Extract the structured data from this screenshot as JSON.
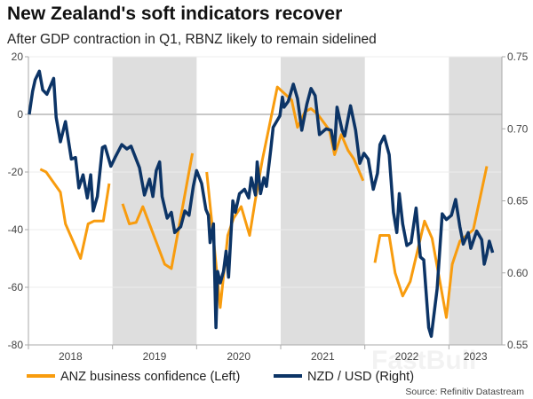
{
  "header": {
    "title": "New Zealand's soft indicators recover",
    "subtitle": "After GDP contraction in Q1, RBNZ likely to remain sidelined"
  },
  "watermark": "FastBull",
  "source": "Source: Refinitiv Datastream",
  "chart_data": {
    "type": "line",
    "title": "New Zealand's soft indicators recover",
    "subtitle": "After GDP contraction in Q1, RBNZ likely to remain sidelined",
    "xlim": [
      2018,
      2023.63
    ],
    "x_ticks": [
      "2018",
      "2019",
      "2020",
      "2021",
      "2022",
      "2023"
    ],
    "y_left": {
      "lim": [
        -80,
        20
      ],
      "ticks": [
        "20",
        "0",
        "-20",
        "-40",
        "-60",
        "-80"
      ]
    },
    "y_right": {
      "lim": [
        0.55,
        0.75
      ],
      "ticks": [
        "0.75",
        "0.70",
        "0.65",
        "0.60",
        "0.55"
      ]
    },
    "grid": true,
    "shaded_years": [
      [
        2019,
        2020
      ],
      [
        2021,
        2022
      ],
      [
        2023,
        2023.63
      ]
    ],
    "shade_color": "#dedede",
    "legend_position": "bottom",
    "series": [
      {
        "name": "ANZ business confidence (Left)",
        "axis": "left",
        "color": "#f89c0e",
        "segments": [
          [
            [
              2018.14,
              -19
            ],
            [
              2018.21,
              -20
            ],
            [
              2018.38,
              -27
            ],
            [
              2018.44,
              -38
            ],
            [
              2018.62,
              -50
            ],
            [
              2018.71,
              -38
            ],
            [
              2018.78,
              -37
            ],
            [
              2018.89,
              -37
            ],
            [
              2018.96,
              -24
            ]
          ],
          [
            [
              2019.12,
              -31
            ],
            [
              2019.2,
              -38
            ],
            [
              2019.28,
              -37.5
            ],
            [
              2019.36,
              -32
            ],
            [
              2019.62,
              -52
            ],
            [
              2019.7,
              -53.5
            ],
            [
              2019.95,
              -13.5
            ]
          ],
          [
            [
              2020.12,
              -20
            ],
            [
              2020.2,
              -43
            ],
            [
              2020.28,
              -67
            ],
            [
              2020.37,
              -42
            ],
            [
              2020.44,
              -36
            ],
            [
              2020.53,
              -32
            ],
            [
              2020.63,
              -42
            ],
            [
              2020.69,
              -31
            ],
            [
              2020.78,
              -16
            ],
            [
              2020.96,
              9.5
            ],
            [
              2021.13,
              5
            ],
            [
              2021.2,
              -4.5
            ],
            [
              2021.29,
              1
            ],
            [
              2021.36,
              2
            ],
            [
              2021.44,
              0
            ],
            [
              2021.58,
              -5.5
            ],
            [
              2021.64,
              -14
            ],
            [
              2021.72,
              -7
            ],
            [
              2021.8,
              -12.5
            ],
            [
              2021.87,
              -15.5
            ],
            [
              2021.98,
              -23
            ]
          ],
          [
            [
              2022.12,
              -51.5
            ],
            [
              2022.18,
              -42
            ],
            [
              2022.29,
              -42
            ],
            [
              2022.36,
              -55
            ],
            [
              2022.45,
              -63
            ],
            [
              2022.54,
              -58
            ],
            [
              2022.71,
              -37
            ],
            [
              2022.8,
              -43
            ],
            [
              2022.97,
              -70.5
            ],
            [
              2023.04,
              -52
            ],
            [
              2023.13,
              -44
            ],
            [
              2023.29,
              -40
            ],
            [
              2023.45,
              -18
            ]
          ]
        ]
      },
      {
        "name": "NZD / USD (Right)",
        "axis": "right",
        "color": "#0c3466",
        "segments": [
          [
            [
              2018.01,
              0.71
            ],
            [
              2018.05,
              0.726
            ],
            [
              2018.08,
              0.734
            ],
            [
              2018.13,
              0.74
            ],
            [
              2018.17,
              0.727
            ],
            [
              2018.22,
              0.724
            ],
            [
              2018.3,
              0.735
            ],
            [
              2018.33,
              0.708
            ],
            [
              2018.38,
              0.691
            ],
            [
              2018.44,
              0.705
            ],
            [
              2018.51,
              0.679
            ],
            [
              2018.56,
              0.68
            ],
            [
              2018.6,
              0.659
            ],
            [
              2018.65,
              0.668
            ],
            [
              2018.7,
              0.652
            ],
            [
              2018.74,
              0.668
            ],
            [
              2018.77,
              0.643
            ],
            [
              2018.82,
              0.653
            ],
            [
              2018.88,
              0.687
            ],
            [
              2018.91,
              0.688
            ],
            [
              2018.98,
              0.674
            ],
            [
              2019.03,
              0.68
            ],
            [
              2019.11,
              0.689
            ],
            [
              2019.17,
              0.686
            ],
            [
              2019.22,
              0.688
            ],
            [
              2019.32,
              0.673
            ],
            [
              2019.38,
              0.654
            ],
            [
              2019.44,
              0.665
            ],
            [
              2019.48,
              0.653
            ],
            [
              2019.52,
              0.671
            ],
            [
              2019.56,
              0.677
            ],
            [
              2019.59,
              0.653
            ],
            [
              2019.65,
              0.638
            ],
            [
              2019.7,
              0.642
            ],
            [
              2019.74,
              0.628
            ],
            [
              2019.81,
              0.632
            ],
            [
              2019.86,
              0.643
            ],
            [
              2019.91,
              0.64
            ],
            [
              2019.96,
              0.66
            ],
            [
              2020.0,
              0.671
            ],
            [
              2020.06,
              0.662
            ],
            [
              2020.11,
              0.644
            ],
            [
              2020.14,
              0.64
            ],
            [
              2020.16,
              0.621
            ],
            [
              2020.2,
              0.634
            ],
            [
              2020.23,
              0.562
            ],
            [
              2020.25,
              0.601
            ],
            [
              2020.28,
              0.593
            ],
            [
              2020.32,
              0.601
            ],
            [
              2020.35,
              0.615
            ],
            [
              2020.38,
              0.597
            ],
            [
              2020.43,
              0.65
            ],
            [
              2020.46,
              0.642
            ],
            [
              2020.51,
              0.655
            ],
            [
              2020.57,
              0.658
            ],
            [
              2020.62,
              0.652
            ],
            [
              2020.65,
              0.666
            ],
            [
              2020.7,
              0.654
            ],
            [
              2020.72,
              0.677
            ],
            [
              2020.76,
              0.655
            ],
            [
              2020.8,
              0.666
            ],
            [
              2020.83,
              0.66
            ],
            [
              2020.88,
              0.685
            ],
            [
              2020.91,
              0.701
            ],
            [
              2020.99,
              0.709
            ],
            [
              2021.02,
              0.722
            ],
            [
              2021.04,
              0.715
            ],
            [
              2021.09,
              0.719
            ],
            [
              2021.15,
              0.731
            ],
            [
              2021.2,
              0.721
            ],
            [
              2021.25,
              0.699
            ],
            [
              2021.31,
              0.717
            ],
            [
              2021.36,
              0.728
            ],
            [
              2021.41,
              0.723
            ],
            [
              2021.46,
              0.696
            ],
            [
              2021.54,
              0.7
            ],
            [
              2021.6,
              0.699
            ],
            [
              2021.64,
              0.686
            ],
            [
              2021.67,
              0.715
            ],
            [
              2021.73,
              0.699
            ],
            [
              2021.76,
              0.695
            ],
            [
              2021.83,
              0.716
            ],
            [
              2021.89,
              0.699
            ],
            [
              2021.94,
              0.676
            ],
            [
              2021.99,
              0.683
            ],
            [
              2022.04,
              0.679
            ],
            [
              2022.1,
              0.658
            ],
            [
              2022.15,
              0.669
            ],
            [
              2022.18,
              0.689
            ],
            [
              2022.23,
              0.695
            ],
            [
              2022.29,
              0.682
            ],
            [
              2022.34,
              0.642
            ],
            [
              2022.38,
              0.628
            ],
            [
              2022.41,
              0.655
            ],
            [
              2022.45,
              0.634
            ],
            [
              2022.5,
              0.619
            ],
            [
              2022.55,
              0.621
            ],
            [
              2022.61,
              0.645
            ],
            [
              2022.66,
              0.611
            ],
            [
              2022.7,
              0.609
            ],
            [
              2022.76,
              0.562
            ],
            [
              2022.79,
              0.556
            ],
            [
              2022.86,
              0.589
            ],
            [
              2022.92,
              0.641
            ],
            [
              2022.97,
              0.637
            ],
            [
              2023.03,
              0.64
            ],
            [
              2023.08,
              0.651
            ],
            [
              2023.13,
              0.632
            ],
            [
              2023.17,
              0.62
            ],
            [
              2023.23,
              0.628
            ],
            [
              2023.26,
              0.617
            ],
            [
              2023.33,
              0.629
            ],
            [
              2023.39,
              0.623
            ],
            [
              2023.42,
              0.606
            ],
            [
              2023.45,
              0.613
            ],
            [
              2023.48,
              0.622
            ],
            [
              2023.52,
              0.614
            ]
          ]
        ]
      }
    ]
  }
}
